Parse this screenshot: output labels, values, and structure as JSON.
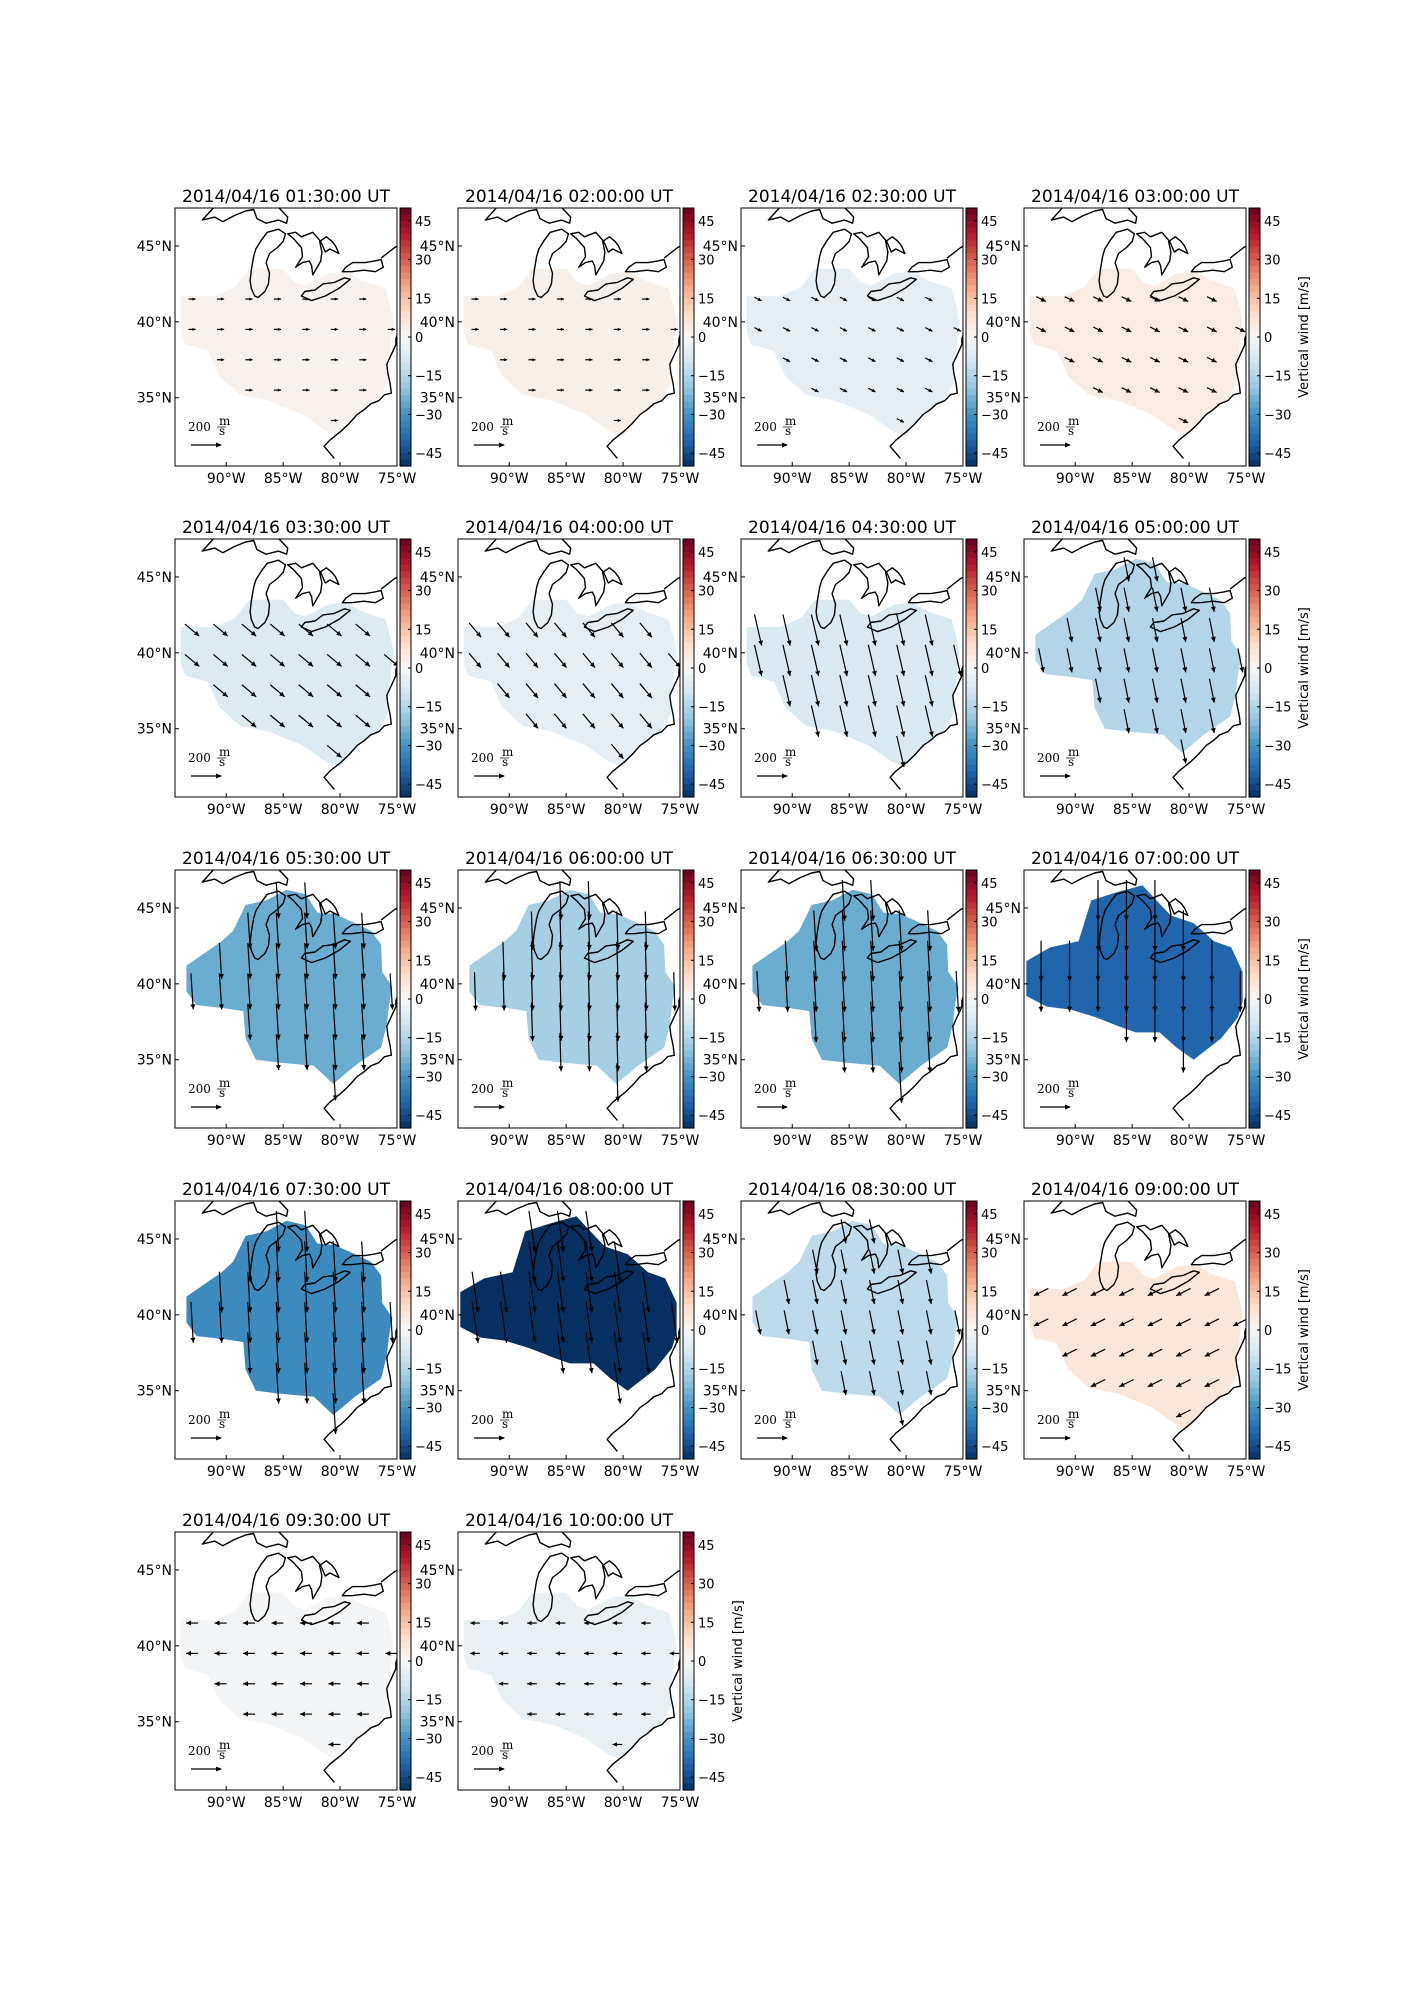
{
  "chart_data": {
    "type": "heatmap",
    "layout": {
      "columns": 4,
      "rows": 5
    },
    "map": {
      "longitude_range": [
        -94.5,
        -75
      ],
      "latitude_range": [
        30.5,
        47.5
      ],
      "longitude_ticks": [
        "90°W",
        "85°W",
        "80°W",
        "75°W"
      ],
      "latitude_ticks": [
        "45°N",
        "40°N",
        "35°N"
      ],
      "longitude_tick_values": [
        -90,
        -85,
        -80,
        -75
      ],
      "latitude_tick_values": [
        45,
        40,
        35
      ]
    },
    "colorbar": {
      "label": "Vertical wind [m/s]",
      "range": [
        -50,
        50
      ],
      "tick_values": [
        45,
        30,
        15,
        0,
        -15,
        -30,
        -45
      ],
      "tick_labels": [
        "45",
        "30",
        "15",
        "0",
        "−15",
        "−30",
        "−45"
      ],
      "colormap": "RdBu_r",
      "low_color": "#053061",
      "mid_color": "#f7f7f7",
      "high_color": "#67001f",
      "labeled_on_panels": [
        3,
        7,
        11,
        15,
        17
      ]
    },
    "reference_arrow": {
      "label": "200",
      "unit_numerator": "m",
      "unit_denominator": "s",
      "magnitude": 200
    },
    "panels": [
      {
        "title": "2014/04/16 01:30:00 UT",
        "vertical_wind": 2,
        "wind_u": 30,
        "wind_v": 0
      },
      {
        "title": "2014/04/16 02:00:00 UT",
        "vertical_wind": 3,
        "wind_u": 30,
        "wind_v": 0
      },
      {
        "title": "2014/04/16 02:30:00 UT",
        "vertical_wind": -5,
        "wind_u": 30,
        "wind_v": -15
      },
      {
        "title": "2014/04/16 03:00:00 UT",
        "vertical_wind": 4,
        "wind_u": 40,
        "wind_v": -20
      },
      {
        "title": "2014/04/16 03:30:00 UT",
        "vertical_wind": -7,
        "wind_u": 60,
        "wind_v": -50
      },
      {
        "title": "2014/04/16 04:00:00 UT",
        "vertical_wind": -5,
        "wind_u": 50,
        "wind_v": -60
      },
      {
        "title": "2014/04/16 04:30:00 UT",
        "vertical_wind": -8,
        "wind_u": 30,
        "wind_v": -130
      },
      {
        "title": "2014/04/16 05:00:00 UT",
        "vertical_wind": -15,
        "wind_u": 20,
        "wind_v": -100
      },
      {
        "title": "2014/04/16 05:30:00 UT",
        "vertical_wind": -25,
        "wind_u": 10,
        "wind_v": -150
      },
      {
        "title": "2014/04/16 06:00:00 UT",
        "vertical_wind": -17,
        "wind_u": 5,
        "wind_v": -160
      },
      {
        "title": "2014/04/16 06:30:00 UT",
        "vertical_wind": -25,
        "wind_u": 10,
        "wind_v": -170
      },
      {
        "title": "2014/04/16 07:00:00 UT",
        "vertical_wind": -40,
        "wind_u": 0,
        "wind_v": -170
      },
      {
        "title": "2014/04/16 07:30:00 UT",
        "vertical_wind": -32,
        "wind_u": 10,
        "wind_v": -170
      },
      {
        "title": "2014/04/16 08:00:00 UT",
        "vertical_wind": -50,
        "wind_u": 25,
        "wind_v": -170
      },
      {
        "title": "2014/04/16 08:30:00 UT",
        "vertical_wind": -13,
        "wind_u": 20,
        "wind_v": -100
      },
      {
        "title": "2014/04/16 09:00:00 UT",
        "vertical_wind": 6,
        "wind_u": -60,
        "wind_v": -30
      },
      {
        "title": "2014/04/16 09:30:00 UT",
        "vertical_wind": -1,
        "wind_u": -50,
        "wind_v": 0
      },
      {
        "title": "2014/04/16 10:00:00 UT",
        "vertical_wind": -4,
        "wind_u": -40,
        "wind_v": 0
      }
    ]
  }
}
